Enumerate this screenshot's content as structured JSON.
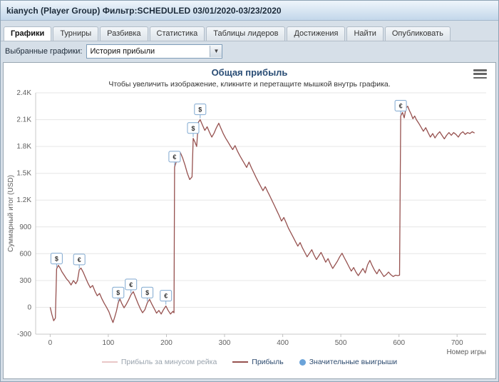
{
  "header": {
    "title": "kianych (Player Group) Фильтр:SCHEDULED 03/01/2020-03/23/2020"
  },
  "tabs": [
    {
      "id": "graphs",
      "label": "Графики",
      "active": true
    },
    {
      "id": "tournaments",
      "label": "Турниры",
      "active": false
    },
    {
      "id": "breakdown",
      "label": "Разбивка",
      "active": false
    },
    {
      "id": "statistics",
      "label": "Статистика",
      "active": false
    },
    {
      "id": "leaderboards",
      "label": "Таблицы лидеров",
      "active": false
    },
    {
      "id": "achievements",
      "label": "Достижения",
      "active": false
    },
    {
      "id": "find",
      "label": "Найти",
      "active": false
    },
    {
      "id": "publish",
      "label": "Опубликовать",
      "active": false
    }
  ],
  "controls": {
    "label": "Выбранные графики:",
    "select_value": "История прибыли"
  },
  "colors": {
    "profit_line": "#96514f",
    "rake_free_line": "#e9c7c7",
    "win_dot": "#6ba3d9",
    "marker_border": "#7fa8d0",
    "title": "#2a4d75"
  },
  "chart_data": {
    "type": "line",
    "title": "Общая прибыль",
    "subtitle": "Чтобы увеличить изображение, кликните и перетащите мышкой внутрь графика.",
    "xlabel": "Номер игры",
    "ylabel": "Суммарный итог (USD)",
    "xlim": [
      -25,
      750
    ],
    "ylim": [
      -300,
      2400
    ],
    "grid": "horizontal",
    "legend_position": "bottom",
    "x_ticks": [
      {
        "v": 0,
        "label": "0"
      },
      {
        "v": 100,
        "label": "100"
      },
      {
        "v": 200,
        "label": "200"
      },
      {
        "v": 300,
        "label": "300"
      },
      {
        "v": 400,
        "label": "400"
      },
      {
        "v": 500,
        "label": "500"
      },
      {
        "v": 600,
        "label": "600"
      },
      {
        "v": 700,
        "label": "700"
      }
    ],
    "y_ticks": [
      {
        "v": -300,
        "label": "-300"
      },
      {
        "v": 0,
        "label": "0"
      },
      {
        "v": 300,
        "label": "300"
      },
      {
        "v": 600,
        "label": "600"
      },
      {
        "v": 900,
        "label": "900"
      },
      {
        "v": 1200,
        "label": "1.2K"
      },
      {
        "v": 1500,
        "label": "1.5K"
      },
      {
        "v": 1800,
        "label": "1.8K"
      },
      {
        "v": 2100,
        "label": "2.1K"
      },
      {
        "v": 2400,
        "label": "2.4K"
      }
    ],
    "legend": [
      {
        "label": "Прибыль за минусом рейка",
        "color": "#e9c7c7",
        "type": "line",
        "muted": true
      },
      {
        "label": "Прибыль",
        "color": "#96514f",
        "type": "line",
        "muted": false
      },
      {
        "label": "Значительные выигрыши",
        "color": "#6ba3d9",
        "type": "dot",
        "muted": false
      }
    ],
    "series": [
      {
        "name": "Прибыль",
        "color": "#96514f",
        "points": [
          [
            0,
            0
          ],
          [
            3,
            -80
          ],
          [
            6,
            -150
          ],
          [
            9,
            -120
          ],
          [
            11,
            430
          ],
          [
            14,
            470
          ],
          [
            17,
            440
          ],
          [
            20,
            400
          ],
          [
            24,
            360
          ],
          [
            28,
            320
          ],
          [
            32,
            290
          ],
          [
            36,
            250
          ],
          [
            40,
            300
          ],
          [
            44,
            265
          ],
          [
            47,
            300
          ],
          [
            50,
            420
          ],
          [
            53,
            440
          ],
          [
            57,
            390
          ],
          [
            61,
            330
          ],
          [
            65,
            270
          ],
          [
            69,
            220
          ],
          [
            73,
            245
          ],
          [
            77,
            180
          ],
          [
            81,
            130
          ],
          [
            85,
            155
          ],
          [
            89,
            95
          ],
          [
            93,
            45
          ],
          [
            97,
            0
          ],
          [
            101,
            -50
          ],
          [
            105,
            -120
          ],
          [
            108,
            -170
          ],
          [
            111,
            -110
          ],
          [
            114,
            -40
          ],
          [
            117,
            50
          ],
          [
            120,
            95
          ],
          [
            123,
            45
          ],
          [
            127,
            -5
          ],
          [
            131,
            35
          ],
          [
            135,
            85
          ],
          [
            139,
            140
          ],
          [
            143,
            175
          ],
          [
            147,
            110
          ],
          [
            151,
            45
          ],
          [
            155,
            -15
          ],
          [
            159,
            -60
          ],
          [
            163,
            -25
          ],
          [
            167,
            50
          ],
          [
            171,
            90
          ],
          [
            175,
            35
          ],
          [
            179,
            -15
          ],
          [
            183,
            -65
          ],
          [
            187,
            -35
          ],
          [
            191,
            -75
          ],
          [
            195,
            -25
          ],
          [
            199,
            15
          ],
          [
            203,
            -35
          ],
          [
            207,
            -75
          ],
          [
            211,
            -45
          ],
          [
            213,
            -60
          ],
          [
            214,
            1570
          ],
          [
            217,
            1630
          ],
          [
            220,
            1690
          ],
          [
            224,
            1730
          ],
          [
            228,
            1670
          ],
          [
            232,
            1590
          ],
          [
            236,
            1500
          ],
          [
            240,
            1430
          ],
          [
            244,
            1460
          ],
          [
            246,
            1890
          ],
          [
            249,
            1850
          ],
          [
            252,
            1800
          ],
          [
            255,
            2070
          ],
          [
            258,
            2100
          ],
          [
            262,
            2040
          ],
          [
            266,
            1980
          ],
          [
            270,
            2020
          ],
          [
            274,
            1960
          ],
          [
            278,
            1905
          ],
          [
            282,
            1950
          ],
          [
            286,
            2010
          ],
          [
            290,
            2060
          ],
          [
            294,
            2000
          ],
          [
            298,
            1940
          ],
          [
            302,
            1890
          ],
          [
            306,
            1850
          ],
          [
            310,
            1805
          ],
          [
            314,
            1765
          ],
          [
            318,
            1810
          ],
          [
            322,
            1750
          ],
          [
            326,
            1700
          ],
          [
            330,
            1655
          ],
          [
            334,
            1610
          ],
          [
            338,
            1565
          ],
          [
            342,
            1625
          ],
          [
            346,
            1565
          ],
          [
            350,
            1510
          ],
          [
            354,
            1455
          ],
          [
            358,
            1405
          ],
          [
            362,
            1355
          ],
          [
            366,
            1305
          ],
          [
            370,
            1350
          ],
          [
            374,
            1295
          ],
          [
            378,
            1245
          ],
          [
            382,
            1190
          ],
          [
            386,
            1135
          ],
          [
            390,
            1080
          ],
          [
            394,
            1025
          ],
          [
            398,
            965
          ],
          [
            402,
            1005
          ],
          [
            406,
            945
          ],
          [
            410,
            885
          ],
          [
            414,
            835
          ],
          [
            418,
            785
          ],
          [
            422,
            735
          ],
          [
            426,
            685
          ],
          [
            430,
            725
          ],
          [
            434,
            665
          ],
          [
            438,
            615
          ],
          [
            442,
            565
          ],
          [
            446,
            605
          ],
          [
            450,
            645
          ],
          [
            454,
            585
          ],
          [
            458,
            535
          ],
          [
            462,
            575
          ],
          [
            466,
            615
          ],
          [
            470,
            560
          ],
          [
            474,
            505
          ],
          [
            478,
            545
          ],
          [
            482,
            485
          ],
          [
            486,
            435
          ],
          [
            490,
            475
          ],
          [
            494,
            515
          ],
          [
            498,
            565
          ],
          [
            502,
            605
          ],
          [
            506,
            555
          ],
          [
            510,
            505
          ],
          [
            514,
            455
          ],
          [
            518,
            405
          ],
          [
            522,
            445
          ],
          [
            526,
            395
          ],
          [
            530,
            355
          ],
          [
            534,
            395
          ],
          [
            538,
            435
          ],
          [
            542,
            385
          ],
          [
            546,
            475
          ],
          [
            550,
            525
          ],
          [
            554,
            465
          ],
          [
            558,
            415
          ],
          [
            562,
            375
          ],
          [
            566,
            425
          ],
          [
            570,
            385
          ],
          [
            574,
            345
          ],
          [
            578,
            365
          ],
          [
            582,
            395
          ],
          [
            586,
            365
          ],
          [
            590,
            345
          ],
          [
            594,
            360
          ],
          [
            598,
            355
          ],
          [
            601,
            360
          ],
          [
            603,
            2140
          ],
          [
            606,
            2180
          ],
          [
            609,
            2120
          ],
          [
            612,
            2230
          ],
          [
            615,
            2250
          ],
          [
            618,
            2200
          ],
          [
            621,
            2160
          ],
          [
            624,
            2110
          ],
          [
            627,
            2140
          ],
          [
            630,
            2100
          ],
          [
            634,
            2060
          ],
          [
            638,
            2015
          ],
          [
            642,
            1970
          ],
          [
            646,
            2010
          ],
          [
            650,
            1955
          ],
          [
            654,
            1905
          ],
          [
            658,
            1945
          ],
          [
            662,
            1895
          ],
          [
            666,
            1935
          ],
          [
            670,
            1965
          ],
          [
            674,
            1925
          ],
          [
            678,
            1885
          ],
          [
            682,
            1925
          ],
          [
            686,
            1955
          ],
          [
            690,
            1925
          ],
          [
            694,
            1955
          ],
          [
            698,
            1935
          ],
          [
            702,
            1905
          ],
          [
            706,
            1945
          ],
          [
            710,
            1965
          ],
          [
            714,
            1935
          ],
          [
            718,
            1955
          ],
          [
            722,
            1945
          ],
          [
            726,
            1965
          ],
          [
            730,
            1950
          ]
        ]
      }
    ],
    "significant_wins": [
      {
        "x": 11,
        "y": 430,
        "symbol": "$"
      },
      {
        "x": 50,
        "y": 420,
        "symbol": "€"
      },
      {
        "x": 117,
        "y": 50,
        "symbol": "$"
      },
      {
        "x": 139,
        "y": 140,
        "symbol": "€"
      },
      {
        "x": 167,
        "y": 50,
        "symbol": "$"
      },
      {
        "x": 199,
        "y": 15,
        "symbol": "€"
      },
      {
        "x": 214,
        "y": 1570,
        "symbol": "€"
      },
      {
        "x": 246,
        "y": 1890,
        "symbol": "$"
      },
      {
        "x": 258,
        "y": 2100,
        "symbol": "$"
      },
      {
        "x": 603,
        "y": 2140,
        "symbol": "€"
      }
    ]
  }
}
